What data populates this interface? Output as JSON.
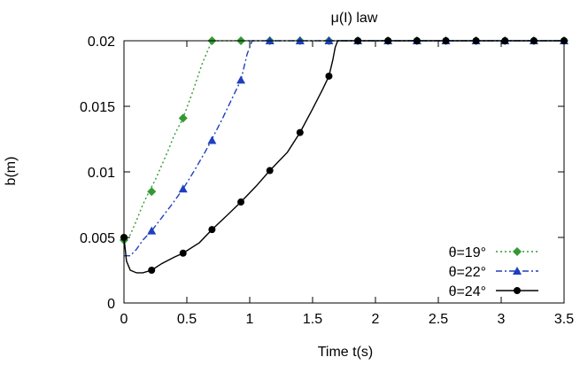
{
  "chart_data": {
    "type": "line",
    "title": "μ(I) law",
    "xlabel": "Time t(s)",
    "ylabel": "b(m)",
    "xlim": [
      0,
      3.5
    ],
    "ylim": [
      0,
      0.02
    ],
    "xticks": [
      0,
      0.5,
      1,
      1.5,
      2,
      2.5,
      3,
      3.5
    ],
    "yticks": [
      0,
      0.005,
      0.01,
      0.015,
      0.02
    ],
    "xtick_labels": [
      "0",
      "0.5",
      "1",
      "1.5",
      "2",
      "2.5",
      "3",
      "3.5"
    ],
    "ytick_labels": [
      "0",
      "0.005",
      "0.01",
      "0.015",
      "0.02"
    ],
    "grid": false,
    "legend_position": "bottom-right",
    "series": [
      {
        "name": "θ=19°",
        "color": "#339933",
        "dash": "dotted",
        "marker": "diamond",
        "curve": [
          [
            0,
            0.0046
          ],
          [
            0.05,
            0.0052
          ],
          [
            0.1,
            0.0063
          ],
          [
            0.15,
            0.0075
          ],
          [
            0.2,
            0.0085
          ],
          [
            0.25,
            0.0094
          ],
          [
            0.3,
            0.0105
          ],
          [
            0.35,
            0.0116
          ],
          [
            0.4,
            0.0128
          ],
          [
            0.47,
            0.0141
          ],
          [
            0.55,
            0.0162
          ],
          [
            0.62,
            0.0182
          ],
          [
            0.7,
            0.02
          ],
          [
            3.5,
            0.02
          ]
        ],
        "markers": [
          [
            0,
            0.0048
          ],
          [
            0.22,
            0.0085
          ],
          [
            0.47,
            0.0141
          ],
          [
            0.7,
            0.02
          ],
          [
            0.93,
            0.02
          ],
          [
            1.16,
            0.02
          ],
          [
            1.4,
            0.02
          ],
          [
            1.63,
            0.02
          ],
          [
            1.86,
            0.02
          ],
          [
            2.1,
            0.02
          ],
          [
            2.33,
            0.02
          ],
          [
            2.56,
            0.02
          ],
          [
            2.8,
            0.02
          ],
          [
            3.03,
            0.02
          ],
          [
            3.26,
            0.02
          ],
          [
            3.5,
            0.02
          ]
        ]
      },
      {
        "name": "θ=22°",
        "color": "#1f3fbf",
        "dash": "dashdot",
        "marker": "triangle",
        "curve": [
          [
            0,
            0.0036
          ],
          [
            0.05,
            0.0036
          ],
          [
            0.1,
            0.0041
          ],
          [
            0.15,
            0.0048
          ],
          [
            0.22,
            0.0055
          ],
          [
            0.3,
            0.0065
          ],
          [
            0.38,
            0.0075
          ],
          [
            0.47,
            0.0087
          ],
          [
            0.56,
            0.0101
          ],
          [
            0.65,
            0.0116
          ],
          [
            0.7,
            0.0125
          ],
          [
            0.78,
            0.014
          ],
          [
            0.86,
            0.0156
          ],
          [
            0.93,
            0.017
          ],
          [
            0.98,
            0.019
          ],
          [
            1.02,
            0.02
          ],
          [
            3.5,
            0.02
          ]
        ],
        "markers": [
          [
            0.22,
            0.0055
          ],
          [
            0.47,
            0.0087
          ],
          [
            0.7,
            0.0124
          ],
          [
            0.93,
            0.017
          ],
          [
            1.16,
            0.02
          ],
          [
            1.4,
            0.02
          ],
          [
            1.63,
            0.02
          ],
          [
            1.86,
            0.02
          ],
          [
            2.1,
            0.02
          ],
          [
            2.33,
            0.02
          ],
          [
            2.56,
            0.02
          ],
          [
            2.8,
            0.02
          ],
          [
            3.03,
            0.02
          ],
          [
            3.26,
            0.02
          ],
          [
            3.5,
            0.02
          ]
        ]
      },
      {
        "name": "θ=24°",
        "color": "#000000",
        "dash": "solid",
        "marker": "circle",
        "curve": [
          [
            0,
            0.005
          ],
          [
            0.02,
            0.0032
          ],
          [
            0.05,
            0.0025
          ],
          [
            0.1,
            0.0023
          ],
          [
            0.15,
            0.0023
          ],
          [
            0.22,
            0.0025
          ],
          [
            0.3,
            0.003
          ],
          [
            0.4,
            0.0035
          ],
          [
            0.47,
            0.0038
          ],
          [
            0.6,
            0.0046
          ],
          [
            0.7,
            0.0056
          ],
          [
            0.8,
            0.0065
          ],
          [
            0.93,
            0.0077
          ],
          [
            1.05,
            0.0089
          ],
          [
            1.16,
            0.0101
          ],
          [
            1.3,
            0.0115
          ],
          [
            1.4,
            0.013
          ],
          [
            1.5,
            0.0148
          ],
          [
            1.58,
            0.0163
          ],
          [
            1.63,
            0.0173
          ],
          [
            1.66,
            0.0185
          ],
          [
            1.68,
            0.0195
          ],
          [
            1.7,
            0.02
          ],
          [
            3.5,
            0.02
          ]
        ],
        "markers": [
          [
            0,
            0.005
          ],
          [
            0.22,
            0.0025
          ],
          [
            0.47,
            0.0038
          ],
          [
            0.7,
            0.0056
          ],
          [
            0.93,
            0.0077
          ],
          [
            1.16,
            0.0101
          ],
          [
            1.4,
            0.013
          ],
          [
            1.63,
            0.0173
          ],
          [
            1.86,
            0.02
          ],
          [
            2.1,
            0.02
          ],
          [
            2.33,
            0.02
          ],
          [
            2.56,
            0.02
          ],
          [
            2.8,
            0.02
          ],
          [
            3.03,
            0.02
          ],
          [
            3.26,
            0.02
          ],
          [
            3.5,
            0.02
          ]
        ]
      }
    ]
  }
}
